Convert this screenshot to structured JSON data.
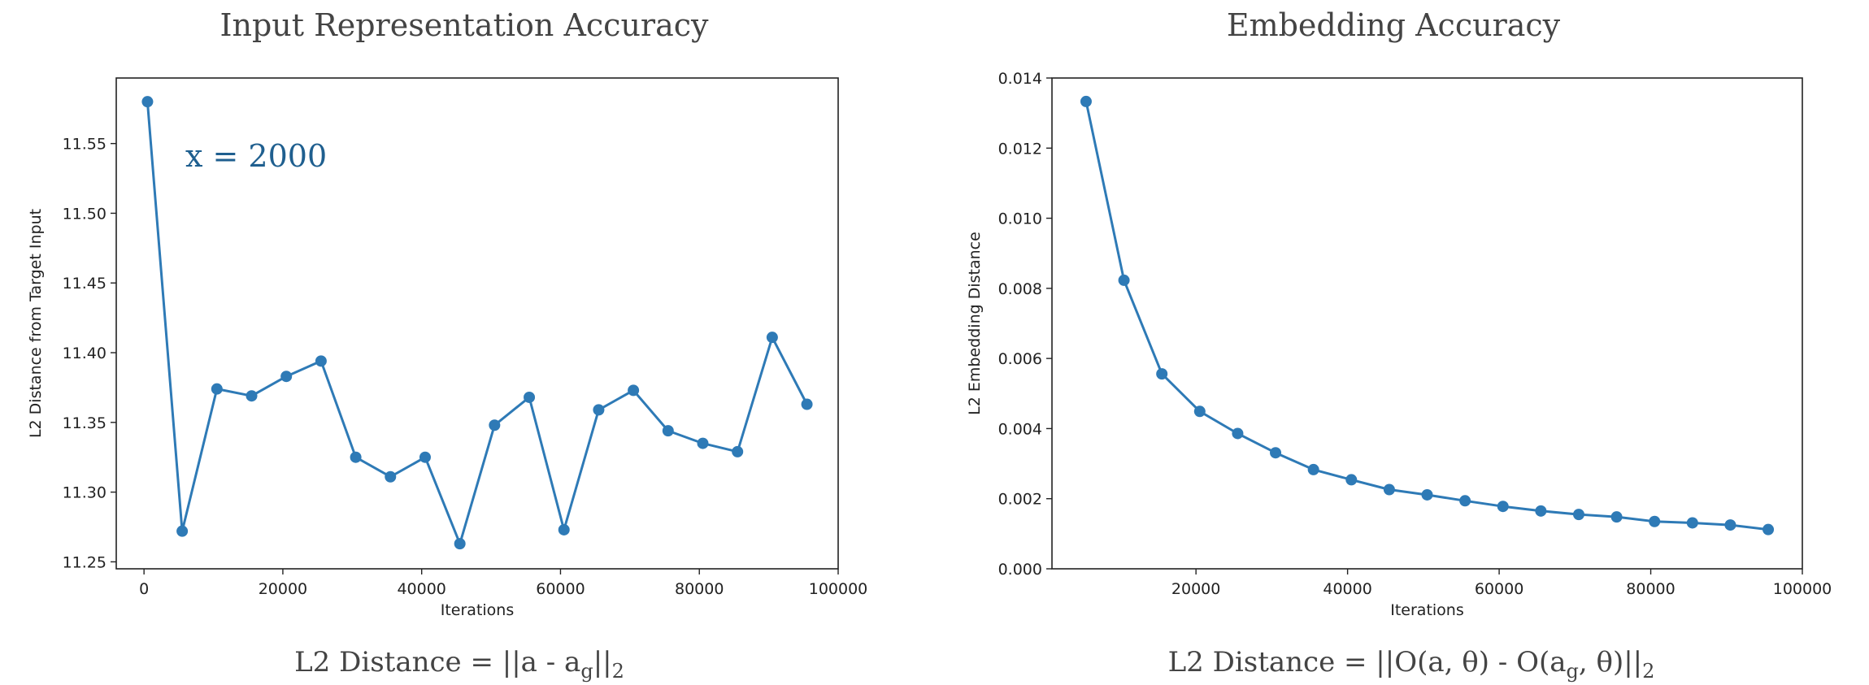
{
  "figure": {
    "left": {
      "title": "Input Representation Accuracy",
      "annotation": "x = 2000",
      "formula": {
        "prefix": "L2 Distance = ||a - a",
        "sub": "g",
        "suffix": "||",
        "end_sub": "2"
      }
    },
    "right": {
      "title": "Embedding Accuracy",
      "formula": {
        "prefix": "L2 Distance = ||O(a, θ) - O(a",
        "sub": "g",
        "suffix": ", θ)||",
        "end_sub": "2"
      }
    }
  },
  "colors": {
    "series": "#2e7ab6",
    "axes": "#222222",
    "title": "#444444",
    "annotation": "#1f5f8f"
  },
  "chart_data": [
    {
      "type": "line",
      "xlabel": "Iterations",
      "ylabel": "L2 Distance from Target Input",
      "xlim": [
        -4000,
        100000
      ],
      "ylim": [
        11.245,
        11.597
      ],
      "xticks": [
        0,
        20000,
        40000,
        60000,
        80000,
        100000
      ],
      "yticks": [
        11.25,
        11.3,
        11.35,
        11.4,
        11.45,
        11.5,
        11.55
      ],
      "ytick_labels": [
        "11.25",
        "11.30",
        "11.35",
        "11.40",
        "11.45",
        "11.50",
        "11.55"
      ],
      "grid": false,
      "series": [
        {
          "x": [
            500,
            5500,
            10500,
            15500,
            20500,
            25500,
            30500,
            35500,
            40500,
            45500,
            50500,
            55500,
            60500,
            65500,
            70500,
            75500,
            80500,
            85500,
            90500,
            95500
          ],
          "y": [
            11.58,
            11.272,
            11.374,
            11.369,
            11.383,
            11.394,
            11.325,
            11.311,
            11.325,
            11.263,
            11.348,
            11.368,
            11.273,
            11.359,
            11.373,
            11.344,
            11.335,
            11.329,
            11.411,
            11.363
          ]
        }
      ]
    },
    {
      "type": "line",
      "xlabel": "Iterations",
      "ylabel": "L2 Embedding Distance",
      "xlim": [
        1000,
        100000
      ],
      "ylim": [
        0.0,
        0.014
      ],
      "xticks": [
        20000,
        40000,
        60000,
        80000,
        100000
      ],
      "yticks": [
        0.0,
        0.002,
        0.004,
        0.006,
        0.008,
        0.01,
        0.012,
        0.014
      ],
      "ytick_labels": [
        "0.000",
        "0.002",
        "0.004",
        "0.006",
        "0.008",
        "0.010",
        "0.012",
        "0.014"
      ],
      "grid": false,
      "series": [
        {
          "x": [
            5500,
            10500,
            15500,
            20500,
            25500,
            30500,
            35500,
            40500,
            45500,
            50500,
            55500,
            60500,
            65500,
            70500,
            75500,
            80500,
            85500,
            90500,
            95500
          ],
          "y": [
            0.01333,
            0.00823,
            0.00556,
            0.00449,
            0.00386,
            0.00331,
            0.00283,
            0.00254,
            0.00226,
            0.00211,
            0.00194,
            0.00178,
            0.00165,
            0.00155,
            0.00148,
            0.00135,
            0.00131,
            0.00125,
            0.00112
          ]
        }
      ]
    }
  ]
}
